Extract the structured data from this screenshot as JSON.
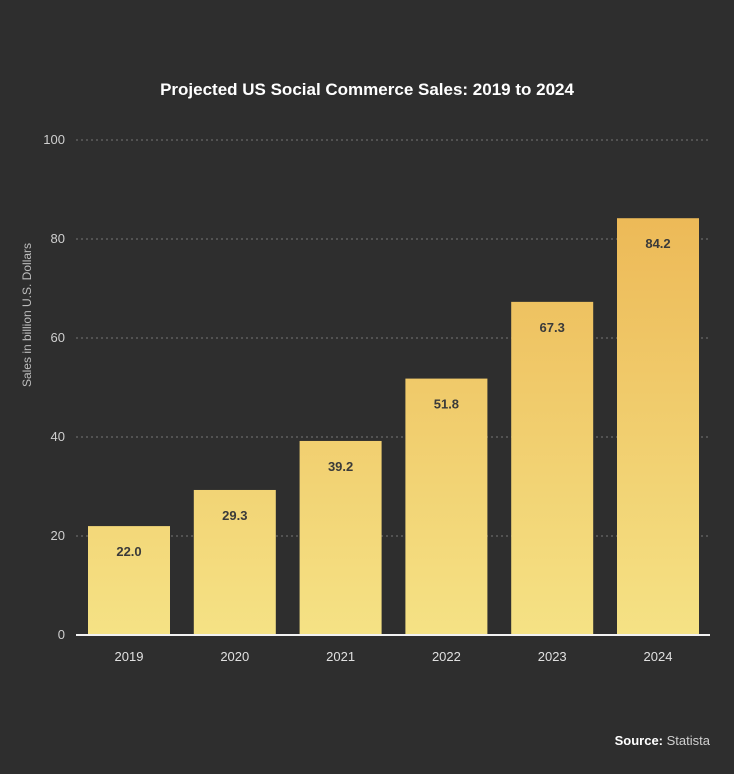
{
  "chart_data": {
    "type": "bar",
    "title": "Projected US Social Commerce Sales: 2019 to 2024",
    "ylabel": "Sales in billion U.S. Dollars",
    "xlabel": "",
    "categories": [
      "2019",
      "2020",
      "2021",
      "2022",
      "2023",
      "2024"
    ],
    "values": [
      22.0,
      29.3,
      39.2,
      51.8,
      67.3,
      84.2
    ],
    "value_labels": [
      "22.0",
      "29.3",
      "39.2",
      "51.8",
      "67.3",
      "84.2"
    ],
    "ylim": [
      0,
      100
    ],
    "yticks": [
      0,
      20,
      40,
      60,
      80,
      100
    ],
    "grid": true,
    "colors": {
      "bar_top": "#ebb24f",
      "bar_bottom": "#f5e285",
      "background": "#2e2e2e"
    }
  },
  "source": {
    "label": "Source:",
    "value": "Statista"
  }
}
